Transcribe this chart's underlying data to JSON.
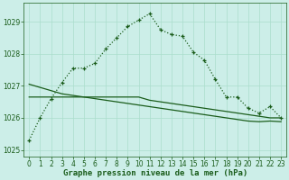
{
  "title": "Graphe pression niveau de la mer (hPa)",
  "background_color": "#cceee8",
  "grid_color": "#aaddcc",
  "line_color": "#1a5c1a",
  "x_values": [
    0,
    1,
    2,
    3,
    4,
    5,
    6,
    7,
    8,
    9,
    10,
    11,
    12,
    13,
    14,
    15,
    16,
    17,
    18,
    19,
    20,
    21,
    22,
    23
  ],
  "main_line": [
    1025.3,
    1026.0,
    1026.6,
    1027.1,
    1027.55,
    1027.55,
    1027.7,
    1028.15,
    1028.5,
    1028.85,
    1029.05,
    1029.25,
    1028.75,
    1028.6,
    1028.55,
    1028.05,
    1027.8,
    1027.2,
    1026.65,
    1026.65,
    1026.3,
    1026.15,
    1026.35,
    1026.0
  ],
  "trend_line1": [
    1026.65,
    1026.65,
    1026.65,
    1026.65,
    1026.65,
    1026.65,
    1026.65,
    1026.65,
    1026.65,
    1026.65,
    1026.65,
    1026.55,
    1026.5,
    1026.45,
    1026.4,
    1026.35,
    1026.3,
    1026.25,
    1026.2,
    1026.15,
    1026.1,
    1026.05,
    1026.0,
    1026.0
  ],
  "trend_line2": [
    1027.05,
    1026.95,
    1026.85,
    1026.75,
    1026.7,
    1026.65,
    1026.6,
    1026.55,
    1026.5,
    1026.45,
    1026.4,
    1026.35,
    1026.3,
    1026.25,
    1026.2,
    1026.15,
    1026.1,
    1026.05,
    1026.0,
    1025.95,
    1025.9,
    1025.88,
    1025.9,
    1025.88
  ],
  "ylim": [
    1024.8,
    1029.6
  ],
  "yticks": [
    1025,
    1026,
    1027,
    1028,
    1029
  ],
  "xlim": [
    -0.5,
    23.5
  ],
  "xticks": [
    0,
    1,
    2,
    3,
    4,
    5,
    6,
    7,
    8,
    9,
    10,
    11,
    12,
    13,
    14,
    15,
    16,
    17,
    18,
    19,
    20,
    21,
    22,
    23
  ],
  "xlabel_fontsize": 6.5,
  "tick_fontsize": 5.5
}
